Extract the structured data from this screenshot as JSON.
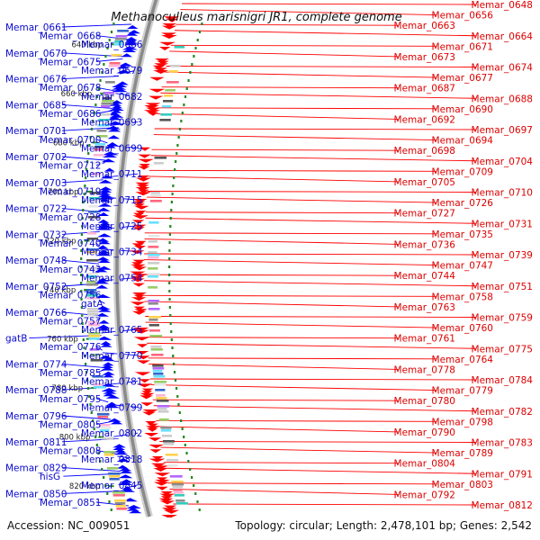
{
  "title": "Methanoculleus marisnigri JR1, complete genome",
  "footer": {
    "accession": "Accession: NC_009051",
    "summary": "Topology: circular; Length: 2,478,101 bp; Genes: 2,542"
  },
  "colors": {
    "left_gene": "#0000ff",
    "right_gene": "#ff0000",
    "left_label": "#0a0acc",
    "right_label": "#dd0000",
    "scale_tick": "#228822",
    "backbone": "#8a8a8a"
  },
  "kbp_ticks": [
    {
      "label": "640 kbp",
      "pos": 640
    },
    {
      "label": "660 kbp",
      "pos": 660
    },
    {
      "label": "680 kbp",
      "pos": 680
    },
    {
      "label": "700 kbp",
      "pos": 700
    },
    {
      "label": "720 kbp",
      "pos": 720
    },
    {
      "label": "740 kbp",
      "pos": 740
    },
    {
      "label": "760 kbp",
      "pos": 760
    },
    {
      "label": "780 kbp",
      "pos": 780
    },
    {
      "label": "800 kbp",
      "pos": 800
    },
    {
      "label": "820 kbp",
      "pos": 820
    }
  ],
  "left_labels": [
    "Memar_0661",
    "Memar_0668",
    "Memar_0666",
    "Memar_0670",
    "Memar_0675",
    "Memar_0679",
    "Memar_0676",
    "Memar_0678",
    "Memar_0682",
    "Memar_0685",
    "Memar_0686",
    "Memar_0693",
    "Memar_0701",
    "Memar_0700",
    "Memar_0699",
    "Memar_0702",
    "Memar_0712",
    "Memar_0711",
    "Memar_0703",
    "Memar_0719",
    "Memar_0715",
    "Memar_0722",
    "Memar_0728",
    "Memar_0725",
    "Memar_0732",
    "Memar_0740",
    "Memar_0734",
    "Memar_0748",
    "Memar_0743",
    "Memar_0754",
    "Memar_0752",
    "Memar_0756",
    "gatA",
    "Memar_0766",
    "Memar_0757",
    "Memar_0765",
    "gatB",
    "Memar_0776",
    "Memar_0770",
    "Memar_0774",
    "Memar_0785",
    "Memar_0781",
    "Memar_0788",
    "Memar_0795",
    "Memar_0799",
    "Memar_0796",
    "Memar_0805",
    "Memar_0802",
    "Memar_0811",
    "Memar_0808",
    "Memar_0818",
    "Memar_0829",
    "hisG",
    "Memar_0845",
    "Memar_0850",
    "Memar_0851"
  ],
  "right_labels": [
    "Memar_0648",
    "Memar_0656",
    "Memar_0663",
    "Memar_0664",
    "Memar_0671",
    "Memar_0673",
    "Memar_0674",
    "Memar_0677",
    "Memar_0687",
    "Memar_0688",
    "Memar_0690",
    "Memar_0692",
    "Memar_0697",
    "Memar_0694",
    "Memar_0698",
    "Memar_0704",
    "Memar_0709",
    "Memar_0705",
    "Memar_0710",
    "Memar_0726",
    "Memar_0727",
    "Memar_0731",
    "Memar_0735",
    "Memar_0736",
    "Memar_0739",
    "Memar_0747",
    "Memar_0744",
    "Memar_0751",
    "Memar_0758",
    "Memar_0763",
    "Memar_0759",
    "Memar_0760",
    "Memar_0761",
    "Memar_0775",
    "Memar_0764",
    "Memar_0778",
    "Memar_0784",
    "Memar_0779",
    "Memar_0780",
    "Memar_0782",
    "Memar_0798",
    "Memar_0790",
    "Memar_0783",
    "Memar_0789",
    "Memar_0804",
    "Memar_0791",
    "Memar_0803",
    "Memar_0792",
    "Memar_0812"
  ]
}
